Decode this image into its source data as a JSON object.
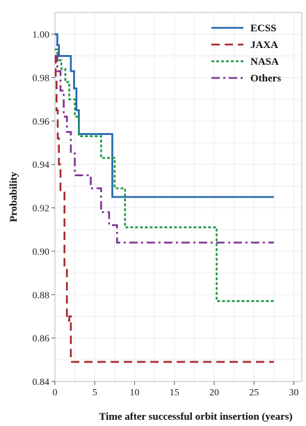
{
  "chart_data": {
    "type": "line",
    "step": true,
    "title": "",
    "xlabel": "Time after successful orbit insertion (years)",
    "ylabel": "Probability",
    "xlim": [
      0,
      31
    ],
    "ylim": [
      0.84,
      1.01
    ],
    "xticks": [
      0,
      5,
      10,
      15,
      20,
      25,
      30
    ],
    "xtick_labels": [
      "0",
      "5",
      "10",
      "15",
      "20",
      "25",
      "30"
    ],
    "yticks": [
      0.84,
      0.86,
      0.88,
      0.9,
      0.92,
      0.94,
      0.96,
      0.98,
      1.0
    ],
    "ytick_labels": [
      "0.84",
      "0.86",
      "0.88",
      "0.90",
      "0.92",
      "0.94",
      "0.96",
      "0.98",
      "1.00"
    ],
    "grid": true,
    "legend": "top-right",
    "series": [
      {
        "name": "ECSS",
        "color": "#2166ac",
        "dash": "solid",
        "x": [
          0,
          0.3,
          0.5,
          1.0,
          2.0,
          2.4,
          2.7,
          3.0,
          7.0,
          7.2,
          27.5
        ],
        "y": [
          1.0,
          0.995,
          0.99,
          0.99,
          0.983,
          0.975,
          0.965,
          0.954,
          0.954,
          0.925,
          0.925
        ]
      },
      {
        "name": "JAXA",
        "color": "#a52a2a",
        "dash": "dashed",
        "x": [
          0,
          0.1,
          0.2,
          0.35,
          0.5,
          0.7,
          1.2,
          1.5,
          1.8,
          2.0,
          27.5
        ],
        "y": [
          0.99,
          0.98,
          0.965,
          0.952,
          0.94,
          0.927,
          0.893,
          0.868,
          0.87,
          0.849,
          0.849
        ]
      },
      {
        "name": "NASA",
        "color": "#1a9641",
        "dash": "dotted",
        "x": [
          0,
          0.3,
          0.8,
          1.3,
          1.8,
          2.5,
          3.0,
          5.8,
          7.5,
          8.8,
          20.3,
          27.5
        ],
        "y": [
          0.993,
          0.988,
          0.984,
          0.978,
          0.97,
          0.962,
          0.953,
          0.943,
          0.929,
          0.911,
          0.877,
          0.877
        ]
      },
      {
        "name": "Others",
        "color": "#7b3294",
        "dash": "dashdot",
        "x": [
          0,
          0.3,
          0.7,
          1.1,
          1.5,
          2.0,
          2.5,
          4.5,
          5.8,
          6.8,
          7.8,
          27.5
        ],
        "y": [
          0.99,
          0.983,
          0.974,
          0.962,
          0.955,
          0.945,
          0.935,
          0.929,
          0.918,
          0.912,
          0.904,
          0.904
        ]
      }
    ]
  }
}
